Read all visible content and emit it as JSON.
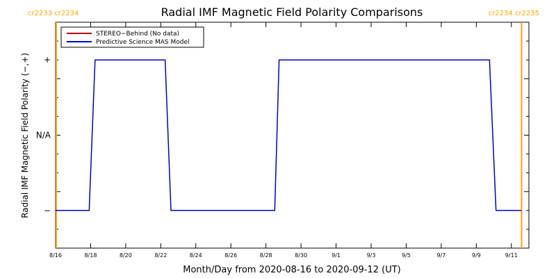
{
  "chart_data": {
    "type": "line",
    "title": "Radial IMF Magnetic Field Polarity Comparisons",
    "xlabel": "Month/Day from 2020-08-16 to 2020-09-12 (UT)",
    "ylabel": "Radial IMF Magnetic Field Polarity (−,+)",
    "x_range": [
      "2020-08-16",
      "2020-09-12"
    ],
    "x_ticks": [
      {
        "date": "2020-08-16",
        "label": "8/16"
      },
      {
        "date": "2020-08-18",
        "label": "8/18"
      },
      {
        "date": "2020-08-20",
        "label": "8/20"
      },
      {
        "date": "2020-08-22",
        "label": "8/22"
      },
      {
        "date": "2020-08-24",
        "label": "8/24"
      },
      {
        "date": "2020-08-26",
        "label": "8/26"
      },
      {
        "date": "2020-08-28",
        "label": "8/28"
      },
      {
        "date": "2020-08-30",
        "label": "8/30"
      },
      {
        "date": "2020-09-01",
        "label": "9/1"
      },
      {
        "date": "2020-09-03",
        "label": "9/3"
      },
      {
        "date": "2020-09-05",
        "label": "9/5"
      },
      {
        "date": "2020-09-07",
        "label": "9/7"
      },
      {
        "date": "2020-09-09",
        "label": "9/9"
      },
      {
        "date": "2020-09-11",
        "label": "9/11"
      }
    ],
    "y_range": [
      -1.5,
      1.5
    ],
    "y_ticks": [
      {
        "value": 1,
        "label": "+"
      },
      {
        "value": 0,
        "label": "N/A"
      },
      {
        "value": -1,
        "label": "−"
      }
    ],
    "legend": {
      "placement": "top-left",
      "entries": [
        {
          "name": "STEREO−Behind (No data)",
          "color": "#c00000"
        },
        {
          "name": "Predictive Science MAS Model",
          "color": "#0000cc"
        }
      ]
    },
    "series": [
      {
        "name": "Predictive Science MAS Model",
        "color": "#0000cc",
        "points": [
          [
            "2020-08-16T00:00",
            -1
          ],
          [
            "2020-08-17T22:00",
            -1
          ],
          [
            "2020-08-18T06:00",
            1
          ],
          [
            "2020-08-22T06:00",
            1
          ],
          [
            "2020-08-22T14:00",
            -1
          ],
          [
            "2020-08-28T12:00",
            -1
          ],
          [
            "2020-08-28T18:00",
            1
          ],
          [
            "2020-09-09T18:00",
            1
          ],
          [
            "2020-09-10T03:00",
            -1
          ],
          [
            "2020-09-11T14:00",
            -1
          ]
        ]
      }
    ],
    "carrington_markers": [
      {
        "date": "2020-08-16T00:00",
        "label": "cr2233 cr2234",
        "side": "left"
      },
      {
        "date": "2020-09-11T14:00",
        "label": "cr2234 cr2235",
        "side": "right"
      }
    ],
    "marker_color": "#ffa500",
    "grid": false
  }
}
